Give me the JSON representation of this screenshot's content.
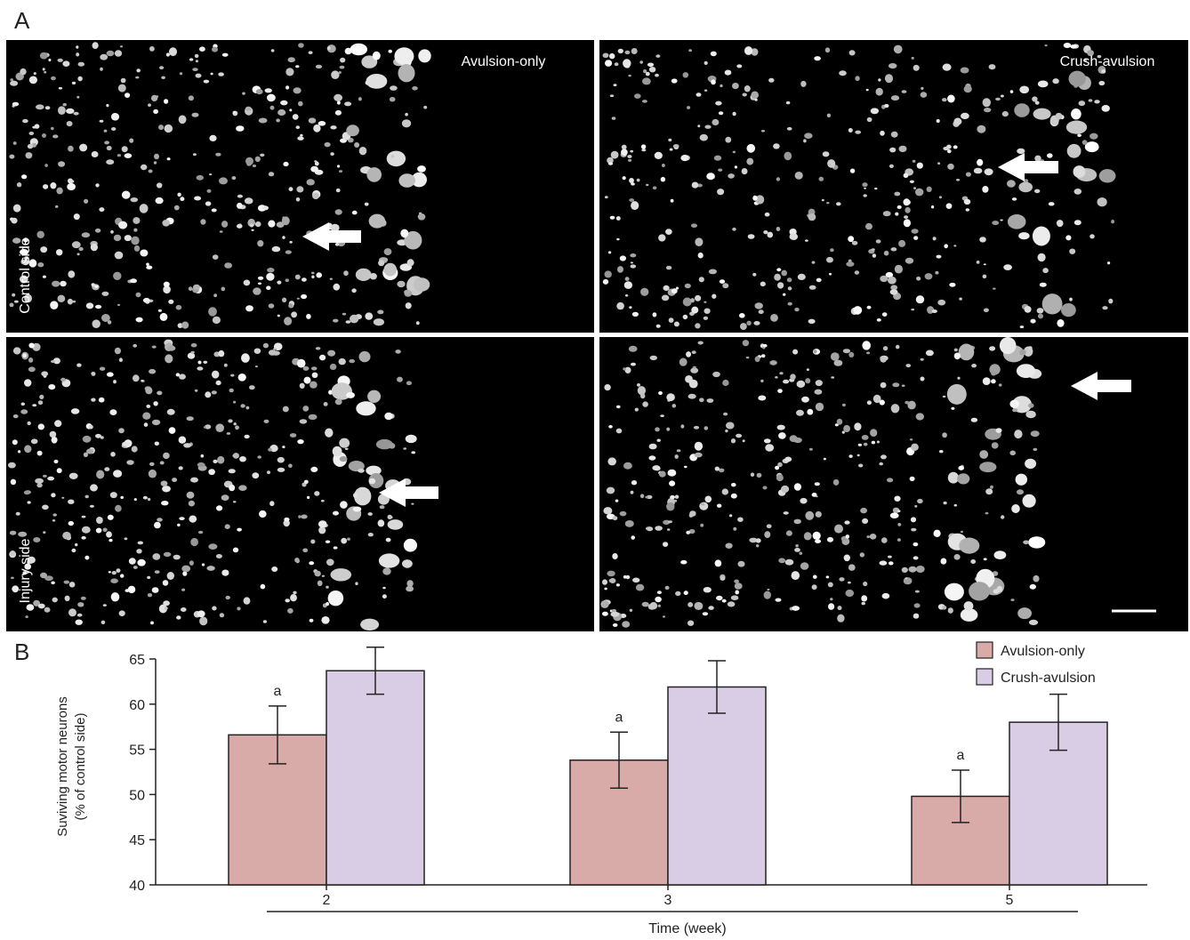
{
  "figure": {
    "panel_a": {
      "label": "A",
      "column_titles": [
        "Avulsion-only",
        "Crush-avulsion"
      ],
      "row_titles": [
        "Control side",
        "Injury side"
      ]
    },
    "panel_b": {
      "label": "B"
    }
  },
  "chart_data": {
    "type": "bar",
    "ylabel": [
      "Suviving motor neurons",
      "(% of control side)"
    ],
    "xlabel": "Time (week)",
    "categories": [
      "2",
      "3",
      "5"
    ],
    "series": [
      {
        "name": "Avulsion-only",
        "color": "#d8aaa8",
        "values": [
          56.6,
          53.8,
          49.8
        ],
        "errors": [
          3.2,
          3.1,
          2.9
        ],
        "annotations": [
          "a",
          "a",
          "a"
        ]
      },
      {
        "name": "Crush-avulsion",
        "color": "#d9cde6",
        "values": [
          63.7,
          61.9,
          58.0
        ],
        "errors": [
          2.6,
          2.9,
          3.1
        ]
      }
    ],
    "ylim": [
      40,
      65
    ],
    "yticks": [
      40,
      45,
      50,
      55,
      60,
      65
    ],
    "legend": "upper right"
  }
}
